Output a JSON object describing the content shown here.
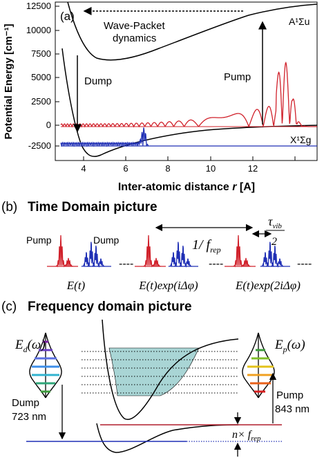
{
  "panel_a": {
    "label": "(a)",
    "ylabel": "Potential Energy [cm⁻¹]",
    "xlabel_main": "Inter-atomic distance ",
    "xlabel_var": "r",
    "xlabel_unit": " [A]",
    "y_ticks": [
      "12500",
      "10000",
      "7500",
      "5000",
      "2500",
      "0",
      "-2500"
    ],
    "x_ticks": [
      "4",
      "6",
      "8",
      "10",
      "12"
    ],
    "wp_line1": "Wave-Packet",
    "wp_line2": "dynamics",
    "pump": "Pump",
    "dump": "Dump",
    "upper_state": "A¹Σu",
    "lower_state": "X¹Σg",
    "colors": {
      "pump": "#d0202a",
      "dump": "#1f2fb5",
      "axis": "#000000"
    }
  },
  "panel_b": {
    "title_label": "(b)",
    "title": "Time Domain picture",
    "pump": "Pump",
    "dump": "Dump",
    "period": "1/ f",
    "period_sub": "rep",
    "tau": "τ",
    "tau_sub": "vib",
    "two": "2",
    "dashes": "----",
    "pulse1": "E(t)",
    "pulse2": "E(t)exp(iΔφ)",
    "pulse3": "E(t)exp(2iΔφ)"
  },
  "panel_c": {
    "title_label": "(c)",
    "title": "Frequency domain picture",
    "ed": "E",
    "ed_sub": "d",
    "ep": "E",
    "ep_sub": "p",
    "omega": "(ω)",
    "dump": "Dump",
    "dump_nm": "723 nm",
    "pump": "Pump",
    "pump_nm": "843 nm",
    "nf": "n× f",
    "nf_sub": "rep"
  }
}
